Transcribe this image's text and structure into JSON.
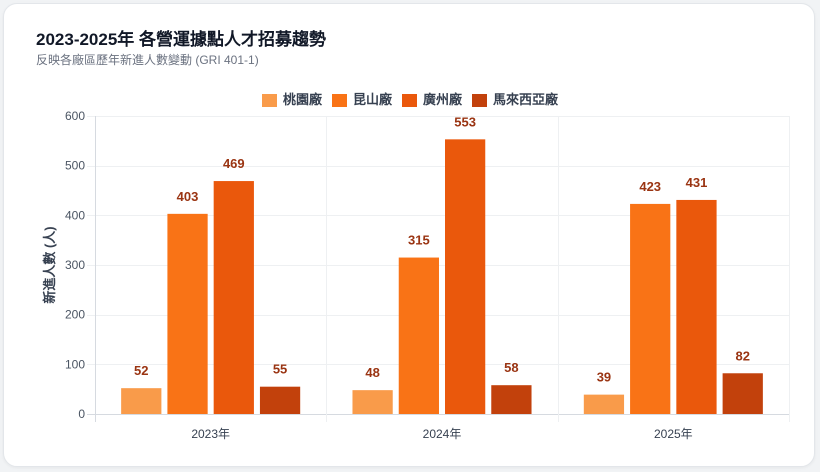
{
  "chart_data": {
    "type": "bar",
    "title": "2023-2025年 各營運據點人才招募趨勢",
    "subtitle": "反映各廠區歷年新進人數變動 (GRI 401-1)",
    "categories": [
      "2023年",
      "2024年",
      "2025年"
    ],
    "series": [
      {
        "name": "桃園廠",
        "values": [
          52,
          48,
          39
        ],
        "color": "#f99b4a"
      },
      {
        "name": "昆山廠",
        "values": [
          403,
          315,
          423
        ],
        "color": "#f97316"
      },
      {
        "name": "廣州廠",
        "values": [
          469,
          553,
          431
        ],
        "color": "#ea580c"
      },
      {
        "name": "馬來西亞廠",
        "values": [
          55,
          58,
          82
        ],
        "color": "#c2410c"
      }
    ],
    "ylabel": "新進人數 (人)",
    "ylim": [
      0,
      600
    ],
    "yticks": [
      0,
      100,
      200,
      300,
      400,
      500,
      600
    ],
    "grid": true,
    "legend": "top-center",
    "data_labels": true,
    "data_label_color": "#9a3412"
  }
}
